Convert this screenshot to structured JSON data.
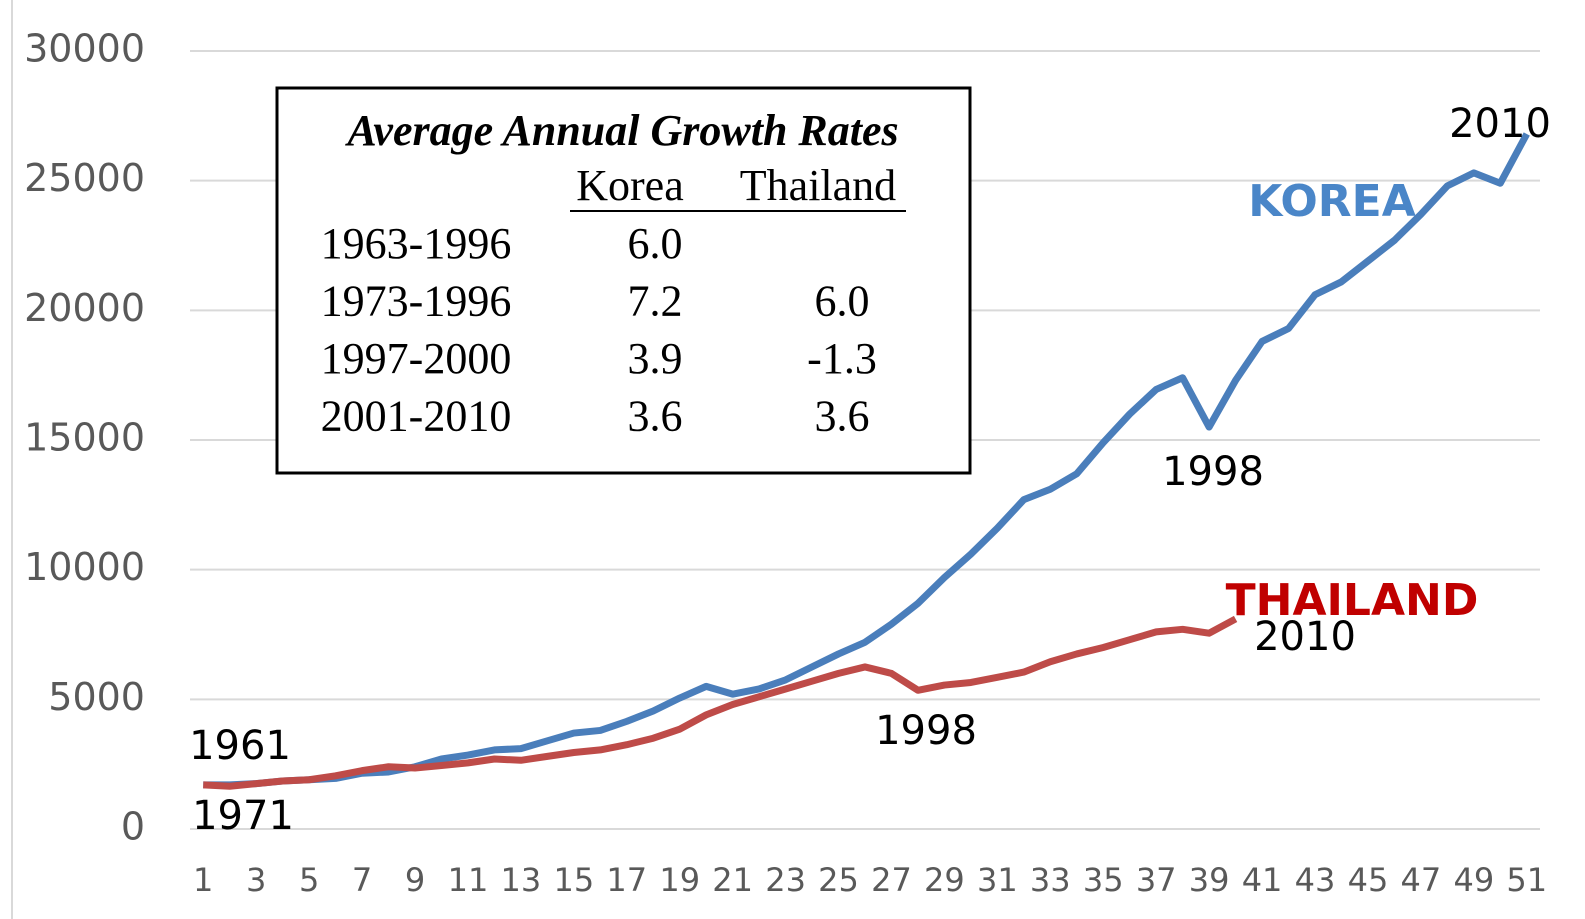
{
  "chart_data": {
    "type": "line",
    "x": [
      1,
      2,
      3,
      4,
      5,
      6,
      7,
      8,
      9,
      10,
      11,
      12,
      13,
      14,
      15,
      16,
      17,
      18,
      19,
      20,
      21,
      22,
      23,
      24,
      25,
      26,
      27,
      28,
      29,
      30,
      31,
      32,
      33,
      34,
      35,
      36,
      37,
      38,
      39,
      40,
      41,
      42,
      43,
      44,
      45,
      46,
      47,
      48,
      49,
      50,
      51
    ],
    "xlim": [
      0.5,
      51.5
    ],
    "xticks": [
      1,
      3,
      5,
      7,
      9,
      11,
      13,
      15,
      17,
      19,
      21,
      23,
      25,
      27,
      29,
      31,
      33,
      35,
      37,
      39,
      41,
      43,
      45,
      47,
      49,
      51
    ],
    "ylim": [
      0,
      30000
    ],
    "yticks": [
      0,
      5000,
      10000,
      15000,
      20000,
      25000,
      30000
    ],
    "grid": true,
    "series": [
      {
        "name": "KOREA",
        "color": "#4a7ebb",
        "label_color": "#4a86c8",
        "values": [
          1700,
          1700,
          1750,
          1850,
          1900,
          1950,
          2150,
          2200,
          2400,
          2700,
          2850,
          3050,
          3100,
          3400,
          3700,
          3800,
          4150,
          4550,
          5050,
          5500,
          5200,
          5400,
          5750,
          6250,
          6750,
          7200,
          7900,
          8700,
          9700,
          10600,
          11600,
          12700,
          13100,
          13700,
          14900,
          16000,
          16950,
          17400,
          15500,
          17300,
          18800,
          19300,
          20600,
          21100,
          21900,
          22700,
          23700,
          24800,
          25300,
          24900,
          26800
        ]
      },
      {
        "name": "THAILAND",
        "color": "#be4b48",
        "label_color": "#c00000",
        "values": [
          1700,
          1650,
          1750,
          1850,
          1900,
          2050,
          2250,
          2400,
          2350,
          2450,
          2550,
          2700,
          2650,
          2800,
          2950,
          3050,
          3250,
          3500,
          3850,
          4400,
          4800,
          5100,
          5400,
          5700,
          6000,
          6250,
          6000,
          5350,
          5550,
          5650,
          5850,
          6050,
          6450,
          6750,
          7000,
          7300,
          7600,
          7700,
          7550,
          8100,
          null,
          null,
          null,
          null,
          null,
          null,
          null,
          null,
          null,
          null,
          null
        ]
      }
    ],
    "annotations": [
      "1961",
      "1971",
      "1998",
      "1998",
      "2010",
      "2010"
    ],
    "inset_table": {
      "title": "Average Annual Growth Rates",
      "columns": [
        "Korea",
        "Thailand"
      ],
      "rows": [
        [
          "1963-1996",
          "6.0",
          null
        ],
        [
          "1973-1996",
          "7.2",
          "6.0"
        ],
        [
          "1997-2000",
          "3.9",
          "-1.3"
        ],
        [
          "2001-2010",
          "3.6",
          "3.6"
        ]
      ]
    }
  }
}
